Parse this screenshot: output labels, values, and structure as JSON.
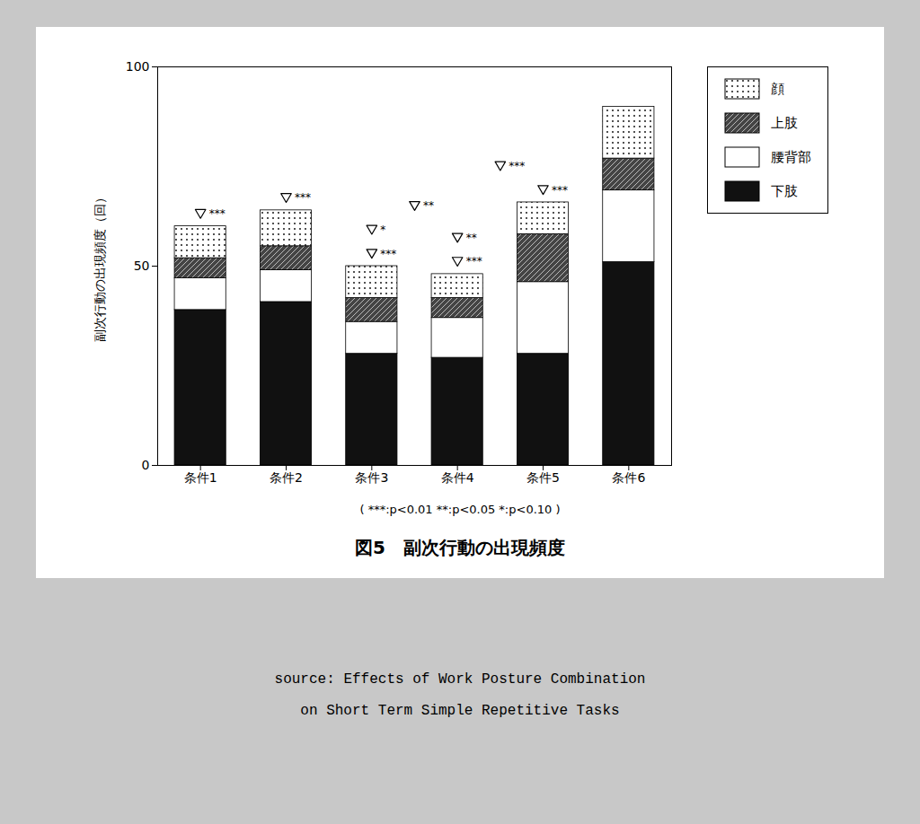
{
  "chart_data": {
    "type": "bar",
    "stacked": true,
    "title": "図5　副次行動の出現頻度",
    "categories": [
      "条件1",
      "条件2",
      "条件3",
      "条件4",
      "条件5",
      "条件6"
    ],
    "series": [
      {
        "name": "下肢",
        "color": "#111111",
        "values": [
          39,
          41,
          28,
          27,
          28,
          51
        ]
      },
      {
        "name": "腰背部",
        "color": "#ffffff",
        "values": [
          8,
          8,
          8,
          10,
          18,
          18
        ]
      },
      {
        "name": "上肢",
        "color": "#444444",
        "values": [
          5,
          6,
          6,
          5,
          12,
          8
        ]
      },
      {
        "name": "顔",
        "color": "#ffffff",
        "values": [
          8,
          9,
          8,
          6,
          8,
          13
        ]
      }
    ],
    "ylabel": "副次行動の出現頻度（回）",
    "ylim": [
      0,
      100
    ],
    "yticks": [
      0,
      50,
      100
    ],
    "grid": false,
    "legend": "right",
    "annotations": [
      {
        "text": "***",
        "x": "条件1"
      },
      {
        "text": "***",
        "x": "条件2"
      },
      {
        "text": "***",
        "x": "条件3"
      },
      {
        "text": "***",
        "x": "条件4"
      },
      {
        "text": "***",
        "x": "条件5"
      },
      {
        "text": "*",
        "x": "条件3"
      },
      {
        "text": "**",
        "x": "条件4"
      },
      {
        "text": "**",
        "x": [
          "条件3",
          "条件4"
        ]
      },
      {
        "text": "***",
        "x": [
          "条件4",
          "条件5"
        ]
      }
    ],
    "note": "( ***:p<0.01  **:p<0.05  *:p<0.10 )",
    "source": [
      "source: Effects of Work Posture Combination",
      "on Short Term Simple Repetitive Tasks"
    ],
    "background": "#c8c8c8"
  }
}
